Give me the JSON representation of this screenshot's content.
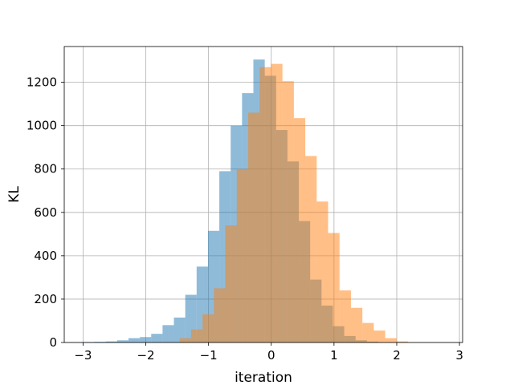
{
  "chart_data": {
    "type": "histogram",
    "xlabel": "iteration",
    "ylabel": "KL",
    "xlim": [
      -3.3,
      3.05
    ],
    "ylim": [
      0,
      1365
    ],
    "xticks": [
      -3,
      -2,
      -1,
      0,
      1,
      2,
      3
    ],
    "xtick_labels": [
      "−3",
      "−2",
      "−1",
      "0",
      "1",
      "2",
      "3"
    ],
    "yticks": [
      0,
      200,
      400,
      600,
      800,
      1000,
      1200
    ],
    "ytick_labels": [
      "0",
      "200",
      "400",
      "600",
      "800",
      "1000",
      "1200"
    ],
    "grid": true,
    "series": [
      {
        "color": "#1f77b4",
        "opacity": 0.5,
        "bin_start": -3.0,
        "bin_width": 0.181,
        "counts": [
          2,
          3,
          5,
          10,
          20,
          25,
          40,
          80,
          115,
          220,
          350,
          515,
          790,
          1000,
          1150,
          1305,
          1230,
          980,
          835,
          560,
          290,
          170,
          75,
          30,
          10,
          4
        ]
      },
      {
        "color": "#ff7f0e",
        "opacity": 0.5,
        "bin_start": -1.46,
        "bin_width": 0.182,
        "counts": [
          20,
          60,
          130,
          250,
          540,
          800,
          1060,
          1270,
          1285,
          1205,
          1035,
          860,
          650,
          505,
          240,
          160,
          90,
          55,
          20,
          5
        ]
      }
    ]
  }
}
